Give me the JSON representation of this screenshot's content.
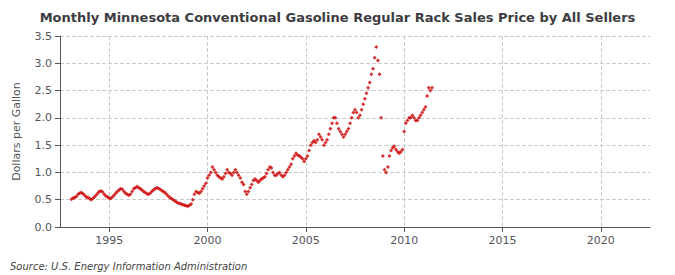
{
  "chart_data": {
    "type": "scatter",
    "title": "Monthly Minnesota Conventional Gasoline Regular Rack Sales Price by All Sellers",
    "ylabel": "Dollars per Gallon",
    "annotations": [
      "Source: U.S. Energy Information Administration"
    ],
    "color": "#cc0000",
    "marker": "diamond",
    "grid": true,
    "xlim": [
      1992.5,
      2022.5
    ],
    "xticks": [
      1995,
      2000,
      2005,
      2010,
      2015,
      2020
    ],
    "ylim": [
      0.0,
      3.5
    ],
    "yticks": [
      {
        "value": 0.0,
        "label": "0.0"
      },
      0.5,
      {
        "value": 1.0,
        "label": "1.0"
      },
      1.5,
      {
        "value": 2.0,
        "label": "2.0"
      },
      2.5,
      {
        "value": 3.0,
        "label": "3.0"
      },
      3.5
    ],
    "x": [
      1993.083,
      1993.167,
      1993.25,
      1993.333,
      1993.417,
      1993.5,
      1993.583,
      1993.667,
      1993.75,
      1993.833,
      1993.917,
      1994.0,
      1994.083,
      1994.167,
      1994.25,
      1994.333,
      1994.417,
      1994.5,
      1994.583,
      1994.667,
      1994.75,
      1994.833,
      1994.917,
      1995.0,
      1995.083,
      1995.167,
      1995.25,
      1995.333,
      1995.417,
      1995.5,
      1995.583,
      1995.667,
      1995.75,
      1995.833,
      1995.917,
      1996.0,
      1996.083,
      1996.167,
      1996.25,
      1996.333,
      1996.417,
      1996.5,
      1996.583,
      1996.667,
      1996.75,
      1996.833,
      1996.917,
      1997.0,
      1997.083,
      1997.167,
      1997.25,
      1997.333,
      1997.417,
      1997.5,
      1997.583,
      1997.667,
      1997.75,
      1997.833,
      1997.917,
      1998.0,
      1998.083,
      1998.167,
      1998.25,
      1998.333,
      1998.417,
      1998.5,
      1998.583,
      1998.667,
      1998.75,
      1998.833,
      1998.917,
      1999.0,
      1999.083,
      1999.167,
      1999.25,
      1999.333,
      1999.417,
      1999.5,
      1999.583,
      1999.667,
      1999.75,
      1999.833,
      1999.917,
      2000.0,
      2000.083,
      2000.167,
      2000.25,
      2000.333,
      2000.417,
      2000.5,
      2000.583,
      2000.667,
      2000.75,
      2000.833,
      2000.917,
      2001.0,
      2001.083,
      2001.167,
      2001.25,
      2001.333,
      2001.417,
      2001.5,
      2001.583,
      2001.667,
      2001.75,
      2001.833,
      2001.917,
      2002.0,
      2002.083,
      2002.167,
      2002.25,
      2002.333,
      2002.417,
      2002.5,
      2002.583,
      2002.667,
      2002.75,
      2002.833,
      2002.917,
      2003.0,
      2003.083,
      2003.167,
      2003.25,
      2003.333,
      2003.417,
      2003.5,
      2003.583,
      2003.667,
      2003.75,
      2003.833,
      2003.917,
      2004.0,
      2004.083,
      2004.167,
      2004.25,
      2004.333,
      2004.417,
      2004.5,
      2004.583,
      2004.667,
      2004.75,
      2004.833,
      2004.917,
      2005.0,
      2005.083,
      2005.167,
      2005.25,
      2005.333,
      2005.417,
      2005.5,
      2005.583,
      2005.667,
      2005.75,
      2005.833,
      2005.917,
      2006.0,
      2006.083,
      2006.167,
      2006.25,
      2006.333,
      2006.417,
      2006.5,
      2006.583,
      2006.667,
      2006.75,
      2006.833,
      2006.917,
      2007.0,
      2007.083,
      2007.167,
      2007.25,
      2007.333,
      2007.417,
      2007.5,
      2007.583,
      2007.667,
      2007.75,
      2007.833,
      2007.917,
      2008.0,
      2008.083,
      2008.167,
      2008.25,
      2008.333,
      2008.417,
      2008.5,
      2008.583,
      2008.667,
      2008.75,
      2008.833,
      2008.917,
      2009.0,
      2009.083,
      2009.167,
      2009.25,
      2009.333,
      2009.417,
      2009.5,
      2009.583,
      2009.667,
      2009.75,
      2009.833,
      2009.917,
      2010.0,
      2010.083,
      2010.167,
      2010.25,
      2010.333,
      2010.417,
      2010.5,
      2010.583,
      2010.667,
      2010.75,
      2010.833,
      2010.917,
      2011.0,
      2011.083,
      2011.167,
      2011.25,
      2011.333,
      2011.417
    ],
    "values": [
      0.51,
      0.53,
      0.54,
      0.56,
      0.6,
      0.62,
      0.63,
      0.61,
      0.58,
      0.55,
      0.54,
      0.52,
      0.5,
      0.52,
      0.55,
      0.58,
      0.62,
      0.65,
      0.66,
      0.64,
      0.6,
      0.57,
      0.55,
      0.53,
      0.52,
      0.55,
      0.58,
      0.62,
      0.65,
      0.68,
      0.7,
      0.69,
      0.65,
      0.62,
      0.6,
      0.58,
      0.6,
      0.65,
      0.7,
      0.72,
      0.74,
      0.72,
      0.7,
      0.68,
      0.65,
      0.63,
      0.61,
      0.6,
      0.62,
      0.65,
      0.68,
      0.7,
      0.72,
      0.71,
      0.69,
      0.67,
      0.65,
      0.63,
      0.6,
      0.57,
      0.54,
      0.52,
      0.5,
      0.48,
      0.46,
      0.44,
      0.43,
      0.42,
      0.41,
      0.4,
      0.39,
      0.38,
      0.4,
      0.42,
      0.5,
      0.6,
      0.65,
      0.63,
      0.62,
      0.65,
      0.7,
      0.75,
      0.8,
      0.9,
      0.95,
      1.0,
      1.1,
      1.05,
      1.0,
      0.95,
      0.92,
      0.9,
      0.88,
      0.92,
      0.98,
      1.05,
      1.0,
      0.98,
      0.95,
      1.0,
      1.05,
      1.0,
      0.95,
      0.9,
      0.82,
      0.78,
      0.65,
      0.6,
      0.65,
      0.72,
      0.78,
      0.85,
      0.88,
      0.85,
      0.82,
      0.85,
      0.88,
      0.9,
      0.92,
      0.98,
      1.05,
      1.1,
      1.08,
      1.0,
      0.95,
      0.95,
      0.98,
      1.0,
      0.95,
      0.92,
      0.95,
      1.0,
      1.05,
      1.1,
      1.15,
      1.25,
      1.3,
      1.35,
      1.32,
      1.3,
      1.28,
      1.25,
      1.2,
      1.25,
      1.3,
      1.4,
      1.5,
      1.55,
      1.58,
      1.55,
      1.6,
      1.7,
      1.65,
      1.6,
      1.5,
      1.55,
      1.6,
      1.7,
      1.8,
      1.9,
      2.0,
      2.0,
      1.9,
      1.8,
      1.75,
      1.7,
      1.65,
      1.7,
      1.75,
      1.8,
      1.9,
      2.0,
      2.1,
      2.15,
      2.1,
      2.0,
      2.05,
      2.15,
      2.25,
      2.35,
      2.45,
      2.55,
      2.65,
      2.8,
      2.9,
      3.1,
      3.3,
      3.05,
      2.8,
      2.0,
      1.3,
      1.05,
      1.0,
      1.1,
      1.3,
      1.4,
      1.45,
      1.48,
      1.42,
      1.38,
      1.35,
      1.38,
      1.42,
      1.75,
      1.9,
      1.95,
      2.0,
      2.0,
      2.05,
      2.0,
      1.95,
      1.95,
      2.0,
      2.05,
      2.1,
      2.15,
      2.2,
      2.4,
      2.55,
      2.5,
      2.55
    ]
  }
}
